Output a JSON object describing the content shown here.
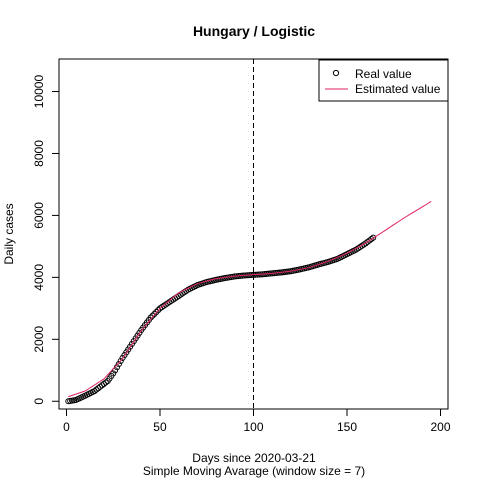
{
  "chart_data": {
    "type": "scatter",
    "title": "Hungary / Logistic",
    "xlabel": "Days since 2020-03-21",
    "subtitle": "Simple Moving Avarage (window size = 7)",
    "ylabel": "Daily cases",
    "xlim": [
      -4,
      204
    ],
    "ylim": [
      -250,
      11050
    ],
    "xticks": [
      0,
      50,
      100,
      150,
      200
    ],
    "yticks": [
      0,
      2000,
      4000,
      6000,
      8000,
      10000
    ],
    "vline_x": 100,
    "legend": {
      "position": "top-right",
      "items": [
        {
          "label": "Real value",
          "marker": "open-circle",
          "color": "#000000"
        },
        {
          "label": "Estimated value",
          "marker": "line",
          "color": "#dd2266"
        }
      ]
    },
    "series": [
      {
        "name": "Real value",
        "kind": "points",
        "color": "#000000",
        "x_range": [
          1,
          164
        ],
        "anchors": [
          [
            1,
            0
          ],
          [
            5,
            40
          ],
          [
            10,
            180
          ],
          [
            15,
            330
          ],
          [
            20,
            560
          ],
          [
            22,
            650
          ],
          [
            25,
            900
          ],
          [
            30,
            1400
          ],
          [
            35,
            1850
          ],
          [
            40,
            2300
          ],
          [
            45,
            2700
          ],
          [
            50,
            3000
          ],
          [
            55,
            3200
          ],
          [
            60,
            3400
          ],
          [
            65,
            3600
          ],
          [
            70,
            3750
          ],
          [
            75,
            3850
          ],
          [
            80,
            3920
          ],
          [
            85,
            3980
          ],
          [
            90,
            4030
          ],
          [
            95,
            4060
          ],
          [
            100,
            4080
          ],
          [
            105,
            4100
          ],
          [
            110,
            4130
          ],
          [
            115,
            4160
          ],
          [
            120,
            4200
          ],
          [
            125,
            4260
          ],
          [
            130,
            4330
          ],
          [
            135,
            4420
          ],
          [
            140,
            4500
          ],
          [
            145,
            4600
          ],
          [
            150,
            4750
          ],
          [
            155,
            4900
          ],
          [
            160,
            5100
          ],
          [
            164,
            5280
          ]
        ]
      },
      {
        "name": "Estimated value",
        "kind": "line",
        "color": "#dd2266",
        "anchors": [
          [
            1,
            150
          ],
          [
            10,
            330
          ],
          [
            20,
            720
          ],
          [
            30,
            1380
          ],
          [
            40,
            2280
          ],
          [
            50,
            3000
          ],
          [
            60,
            3500
          ],
          [
            70,
            3800
          ],
          [
            80,
            3960
          ],
          [
            90,
            4040
          ],
          [
            100,
            4090
          ],
          [
            110,
            4130
          ],
          [
            120,
            4200
          ],
          [
            130,
            4320
          ],
          [
            140,
            4520
          ],
          [
            150,
            4780
          ],
          [
            160,
            5110
          ],
          [
            170,
            5500
          ],
          [
            180,
            5900
          ],
          [
            195,
            6450
          ]
        ]
      }
    ]
  }
}
